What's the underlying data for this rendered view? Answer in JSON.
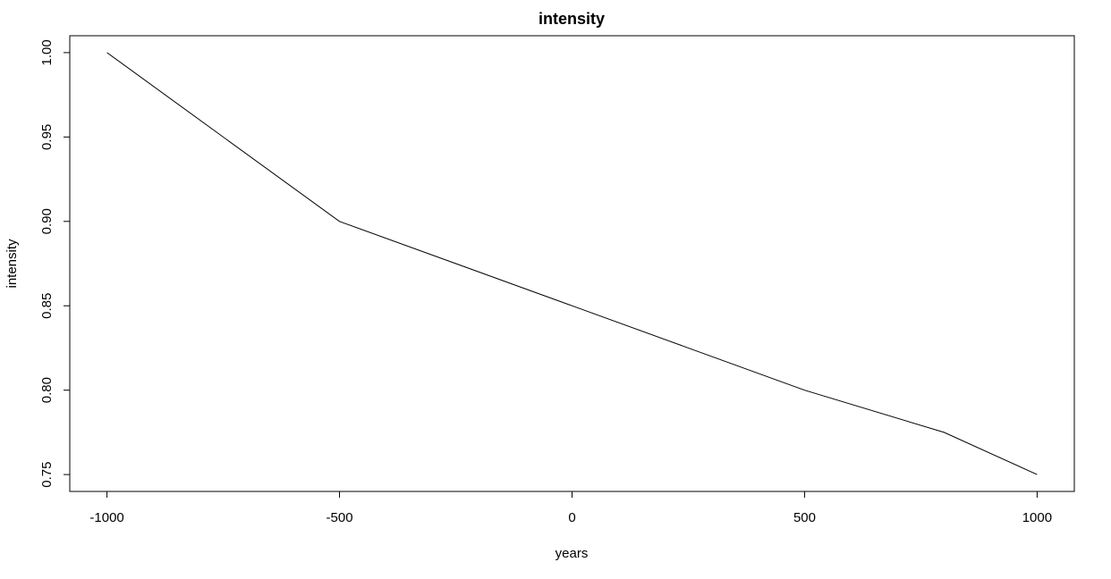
{
  "chart_data": {
    "type": "line",
    "title": "intensity",
    "xlabel": "years",
    "ylabel": "intensity",
    "x": [
      -1000,
      -500,
      0,
      500,
      800,
      1000
    ],
    "series": [
      {
        "values": [
          1.0,
          0.9,
          0.85,
          0.8,
          0.775,
          0.75
        ]
      }
    ],
    "xlim": [
      -1080,
      1080
    ],
    "ylim": [
      0.74,
      1.01
    ],
    "xticks": [
      -1000,
      -500,
      0,
      500,
      1000
    ],
    "xtick_labels": [
      "-1000",
      "-500",
      "0",
      "500",
      "1000"
    ],
    "yticks": [
      0.75,
      0.8,
      0.85,
      0.9,
      0.95,
      1.0
    ],
    "ytick_labels": [
      "0.75",
      "0.80",
      "0.85",
      "0.90",
      "0.95",
      "1.00"
    ],
    "grid": false,
    "line_color": "#000000"
  }
}
